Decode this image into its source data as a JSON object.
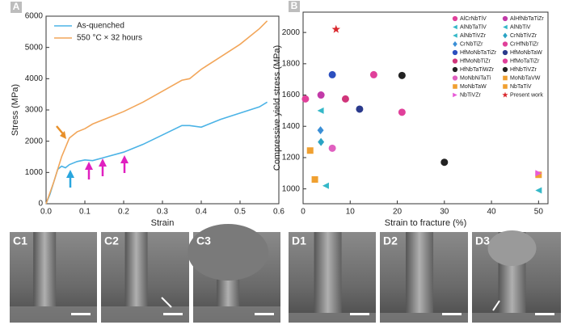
{
  "chart_data": [
    {
      "type": "line",
      "label": "A",
      "x_label": "Strain",
      "y_label": "Stress (MPa)",
      "x": [
        0,
        0.01,
        0.02,
        0.03,
        0.04,
        0.05,
        0.06,
        0.08,
        0.1,
        0.12,
        0.15,
        0.2,
        0.25,
        0.3,
        0.35,
        0.37,
        0.4,
        0.45,
        0.5,
        0.55,
        0.57
      ],
      "series": [
        {
          "name": "As-quenched",
          "color": "#4bb3e6",
          "values": [
            0,
            300,
            700,
            1100,
            1200,
            1150,
            1250,
            1350,
            1400,
            1380,
            1480,
            1650,
            1900,
            2200,
            2500,
            2500,
            2450,
            2700,
            2900,
            3100,
            3250
          ]
        },
        {
          "name": "550 °C × 32 hours",
          "color": "#f2a65a",
          "values": [
            0,
            350,
            700,
            1100,
            1500,
            1800,
            2100,
            2300,
            2400,
            2550,
            2700,
            2950,
            3250,
            3600,
            3950,
            4000,
            4300,
            4700,
            5100,
            5600,
            5850
          ]
        }
      ],
      "xlim": [
        0,
        0.6
      ],
      "xticks": [
        {
          "value": 0,
          "label": "0.0"
        },
        0.1,
        0.2,
        0.3,
        0.4,
        0.5,
        0.6
      ],
      "ylim": [
        0,
        6000
      ],
      "yticks": [
        0,
        1000,
        2000,
        3000,
        4000,
        5000,
        6000
      ]
    },
    {
      "type": "scatter",
      "label": "B",
      "x_label": "Strain to fracture (%)",
      "y_label": "Compressive yield stress (MPa)",
      "series": [
        {
          "name": "AlCrNbTiV",
          "color": "#e0409a",
          "marker": "circle",
          "x": [
            0.5
          ],
          "values": [
            1575
          ]
        },
        {
          "name": "AlHfNbTaTiZr",
          "color": "#c23aa8",
          "marker": "circle",
          "x": [
            3.8
          ],
          "values": [
            1600
          ]
        },
        {
          "name": "AlNbTaTiV",
          "color": "#35b8c8",
          "marker": "triangle",
          "x": [
            3.7
          ],
          "values": [
            1500
          ]
        },
        {
          "name": "AlNbTiV",
          "color": "#35b8c8",
          "marker": "triangle",
          "x": [
            50
          ],
          "values": [
            990
          ]
        },
        {
          "name": "AlNbTiVZr",
          "color": "#35b8c8",
          "marker": "triangle",
          "x": [
            4.8
          ],
          "values": [
            1020
          ]
        },
        {
          "name": "CrNbTiVZr",
          "color": "#2aa3c4",
          "marker": "diamond",
          "x": [
            3.8
          ],
          "values": [
            1300
          ]
        },
        {
          "name": "CrNbTiZr",
          "color": "#3b8fd6",
          "marker": "diamond",
          "x": [
            3.7
          ],
          "values": [
            1375
          ]
        },
        {
          "name": "CrHfNbTiZr",
          "color": "#e0409a",
          "marker": "circle",
          "x": [
            21
          ],
          "values": [
            1490
          ]
        },
        {
          "name": "HfMoNbTaTiZr",
          "color": "#2c4fbf",
          "marker": "circle",
          "x": [
            6.2
          ],
          "values": [
            1730
          ]
        },
        {
          "name": "HfMoNbTaW",
          "color": "#2b3a8c",
          "marker": "circle",
          "x": [
            12
          ],
          "values": [
            1510
          ]
        },
        {
          "name": "HfMoNbTiZr",
          "color": "#d0357a",
          "marker": "circle",
          "x": [
            9
          ],
          "values": [
            1575
          ]
        },
        {
          "name": "HfMoTaTiZr",
          "color": "#e0409a",
          "marker": "circle",
          "x": [
            15
          ],
          "values": [
            1730
          ]
        },
        {
          "name": "HfNbTaTiWZr",
          "color": "#222222",
          "marker": "circle",
          "x": [
            21
          ],
          "values": [
            1725
          ]
        },
        {
          "name": "HfNbTiVZr",
          "color": "#222222",
          "marker": "circle",
          "x": [
            30
          ],
          "values": [
            1170
          ]
        },
        {
          "name": "MoNbNiTaTi",
          "color": "#e060c0",
          "marker": "circle",
          "x": [
            6.2
          ],
          "values": [
            1260
          ]
        },
        {
          "name": "MoNbTaVW",
          "color": "#f0a030",
          "marker": "square",
          "x": [
            2.5
          ],
          "values": [
            1060
          ]
        },
        {
          "name": "MoNbTaW",
          "color": "#f0a030",
          "marker": "square",
          "x": [
            1.5
          ],
          "values": [
            1245
          ]
        },
        {
          "name": "NbTaTiV",
          "color": "#f0a030",
          "marker": "square",
          "x": [
            50
          ],
          "values": [
            1090
          ]
        },
        {
          "name": "NbTiVZr",
          "color": "#e85bd8",
          "marker": "triangle-right",
          "x": [
            50
          ],
          "values": [
            1100
          ]
        },
        {
          "name": "Present work",
          "color": "#d9262b",
          "marker": "star",
          "x": [
            7
          ],
          "values": [
            2020
          ]
        }
      ],
      "xlim": [
        0,
        52
      ],
      "xticks": [
        0,
        10,
        20,
        30,
        40,
        50
      ],
      "ylim": [
        905,
        2130
      ],
      "yticks": [
        1000,
        1200,
        1400,
        1600,
        1800,
        2000
      ]
    }
  ],
  "panels": [
    {
      "label": "C1"
    },
    {
      "label": "C2"
    },
    {
      "label": "C3"
    },
    {
      "label": "D1"
    },
    {
      "label": "D2"
    },
    {
      "label": "D3"
    }
  ]
}
